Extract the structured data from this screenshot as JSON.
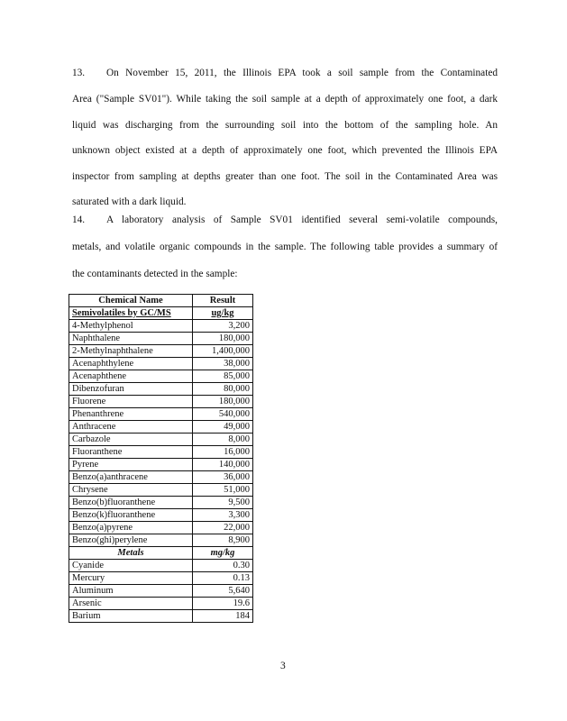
{
  "paragraphs": [
    {
      "number": "13.",
      "lines": [
        "On November 15, 2011, the Illinois EPA took a soil sample from the Contaminated",
        "Area (\"Sample SV01\"). While taking the soil sample at a depth of approximately one foot, a dark",
        "liquid was discharging from the surrounding soil into the bottom of the sampling hole. An",
        "unknown object existed at a depth of approximately one foot, which prevented the Illinois EPA",
        "inspector from sampling at depths greater than one foot. The soil in the Contaminated Area was",
        "saturated with a dark liquid."
      ]
    },
    {
      "number": "14.",
      "lines": [
        "A laboratory analysis of Sample SV01 identified several semi-volatile compounds,",
        "metals, and volatile organic compounds in the sample. The following table provides a summary of",
        "the contaminants detected in the sample:"
      ]
    }
  ],
  "table": {
    "headers": [
      "Chemical Name",
      "Result"
    ],
    "sections": [
      {
        "name": "Semivolatiles by GC/MS",
        "unit": "ug/kg",
        "rows": [
          [
            "4-Methylphenol",
            "3,200"
          ],
          [
            "Naphthalene",
            "180,000"
          ],
          [
            "2-Methylnaphthalene",
            "1,400,000"
          ],
          [
            "Acenaphthylene",
            "38,000"
          ],
          [
            "Acenaphthene",
            "85,000"
          ],
          [
            "Dibenzofuran",
            "80,000"
          ],
          [
            "Fluorene",
            "180,000"
          ],
          [
            "Phenanthrene",
            "540,000"
          ],
          [
            "Anthracene",
            "49,000"
          ],
          [
            "Carbazole",
            "8,000"
          ],
          [
            "Fluoranthene",
            "16,000"
          ],
          [
            "Pyrene",
            "140,000"
          ],
          [
            "Benzo(a)anthracene",
            "36,000"
          ],
          [
            "Chrysene",
            "51,000"
          ],
          [
            "Benzo(b)fluoranthene",
            "9,500"
          ],
          [
            "Benzo(k)fluoranthene",
            "3,300"
          ],
          [
            "Benzo(a)pyrene",
            "22,000"
          ],
          [
            "Benzo(ghi)perylene",
            "8,900"
          ]
        ]
      },
      {
        "name": "Metals",
        "unit": "mg/kg",
        "rows": [
          [
            "Cyanide",
            "0.30"
          ],
          [
            "Mercury",
            "0.13"
          ],
          [
            "Aluminum",
            "5,640"
          ],
          [
            "Arsenic",
            "19.6"
          ],
          [
            "Barium",
            "184"
          ]
        ]
      }
    ]
  },
  "page_number": "3"
}
